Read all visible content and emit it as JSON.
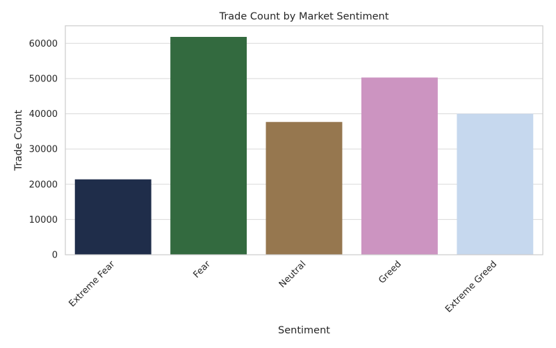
{
  "chart_data": {
    "type": "bar",
    "title": "Trade Count by Market Sentiment",
    "xlabel": "Sentiment",
    "ylabel": "Trade Count",
    "categories": [
      "Extreme Fear",
      "Fear",
      "Neutral",
      "Greed",
      "Extreme Greed"
    ],
    "values": [
      21400,
      61837,
      37686,
      50303,
      39992
    ],
    "colors": [
      "#1f2d4a",
      "#336a3f",
      "#96774f",
      "#cc94c1",
      "#c6d8ee"
    ],
    "ylim": [
      0,
      65000
    ],
    "yticks": [
      0,
      10000,
      20000,
      30000,
      40000,
      50000,
      60000
    ],
    "grid": "horizontal",
    "legend": "none"
  }
}
